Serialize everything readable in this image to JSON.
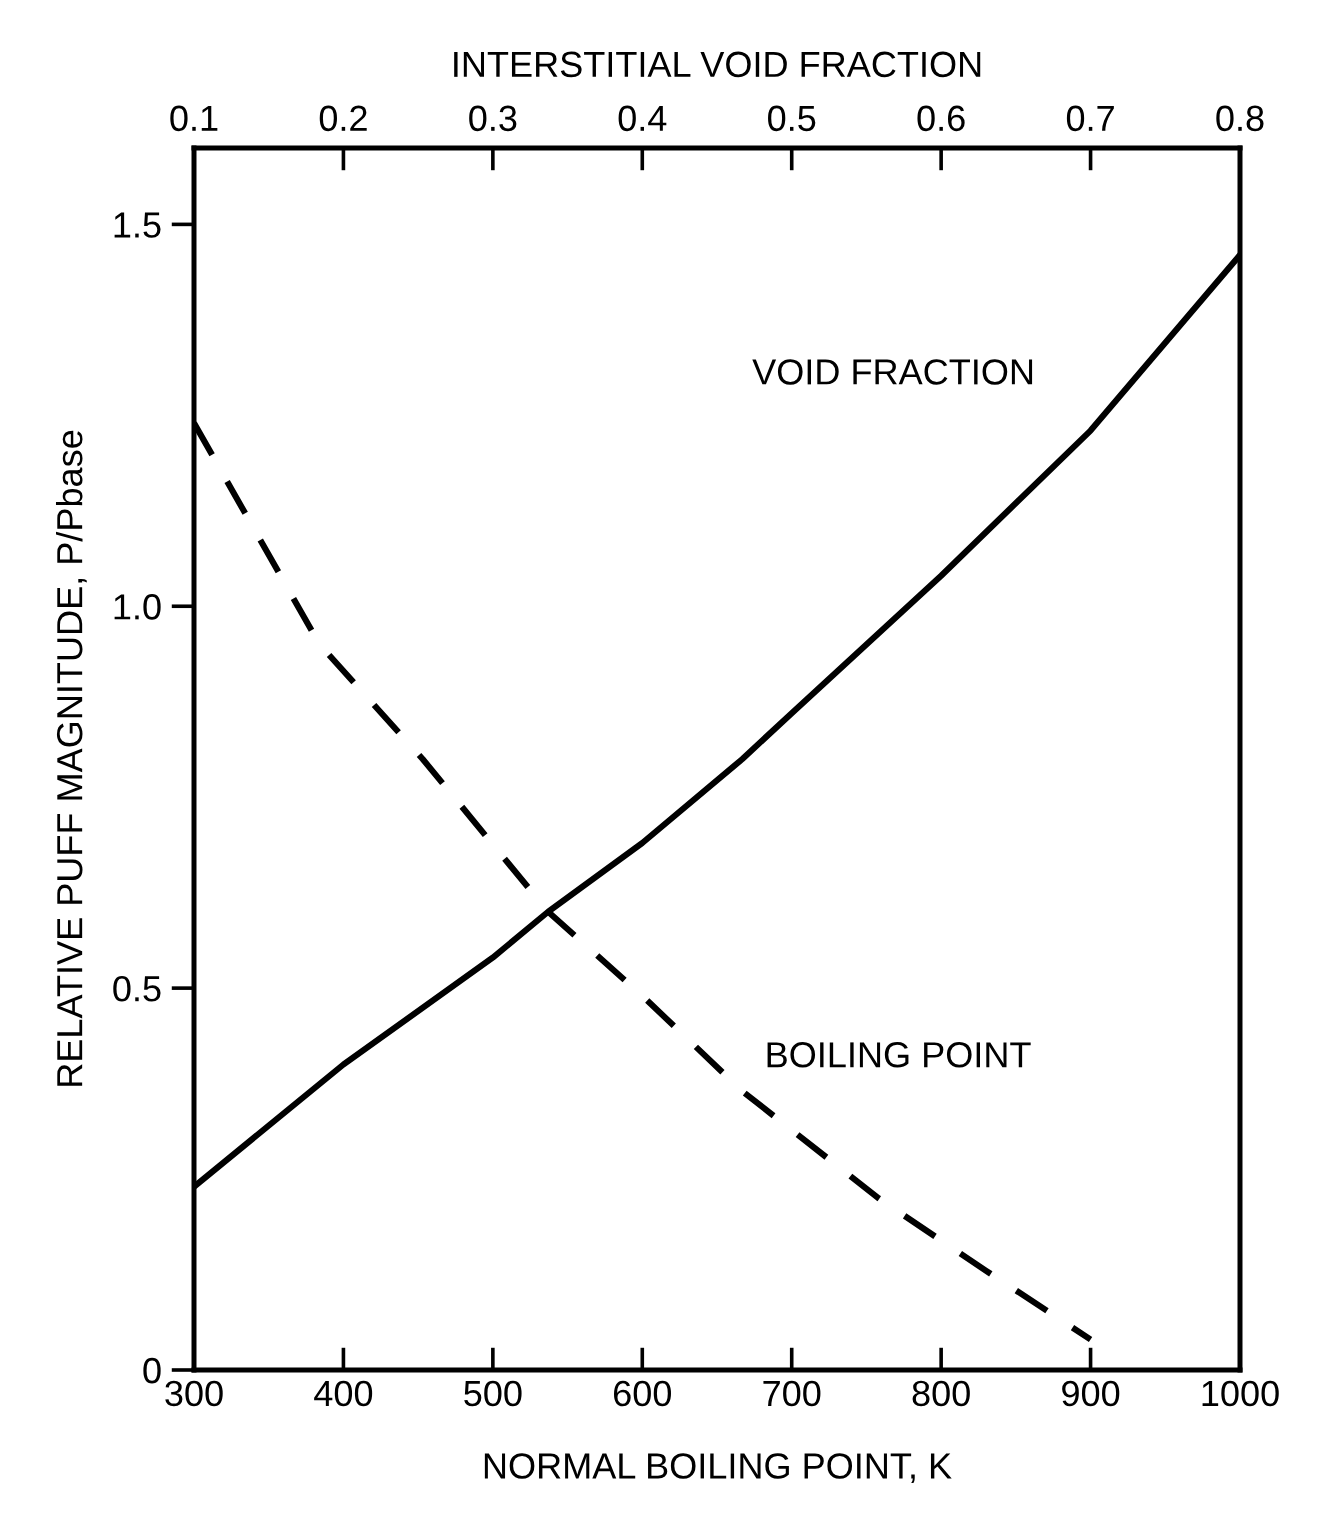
{
  "chart_data": {
    "type": "line",
    "xlabel": "NORMAL BOILING POINT, K",
    "x2label": "INTERSTITIAL VOID FRACTION",
    "ylabel": "RELATIVE PUFF MAGNITUDE, P/Pbase",
    "xlim": [
      300,
      1000
    ],
    "xticks": [
      300,
      400,
      500,
      600,
      700,
      800,
      900,
      1000
    ],
    "x2lim": [
      0.1,
      0.8
    ],
    "x2ticks": [
      0.1,
      0.2,
      0.3,
      0.4,
      0.5,
      0.6,
      0.7,
      0.8
    ],
    "ylim": [
      0,
      1.6
    ],
    "yticks": [
      0,
      {
        "value": 0.5,
        "label": "0.5"
      },
      {
        "value": 1,
        "label": "1.0"
      },
      {
        "value": 1.5,
        "label": "1.5"
      }
    ],
    "grid": false,
    "marker": "none",
    "series": [
      {
        "name": "VOID FRACTION",
        "axis": "x2",
        "color": "#000000",
        "line_style": "solid",
        "x": [
          0.1,
          0.2,
          0.3,
          0.337,
          0.4,
          0.467,
          0.5,
          0.6,
          0.7,
          0.8
        ],
        "values": [
          0.24,
          0.4,
          0.54,
          0.6,
          0.69,
          0.8,
          0.86,
          1.04,
          1.23,
          1.46
        ]
      },
      {
        "name": "BOILING POINT",
        "color": "#000000",
        "line_style": "dashed",
        "x": [
          300,
          384,
          453,
          537,
          600,
          667,
          758,
          830,
          900
        ],
        "values": [
          1.24,
          0.95,
          0.8,
          0.6,
          0.49,
          0.365,
          0.225,
          0.13,
          0.04
        ]
      }
    ]
  }
}
